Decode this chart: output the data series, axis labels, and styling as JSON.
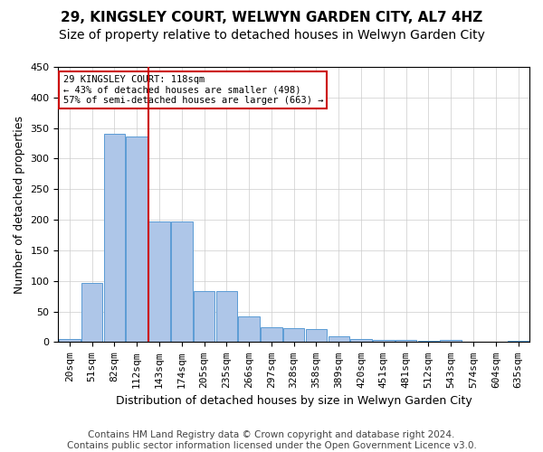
{
  "title1": "29, KINGSLEY COURT, WELWYN GARDEN CITY, AL7 4HZ",
  "title2": "Size of property relative to detached houses in Welwyn Garden City",
  "xlabel": "Distribution of detached houses by size in Welwyn Garden City",
  "ylabel": "Number of detached properties",
  "footnote": "Contains HM Land Registry data © Crown copyright and database right 2024.\nContains public sector information licensed under the Open Government Licence v3.0.",
  "annotation_line1": "29 KINGSLEY COURT: 118sqm",
  "annotation_line2": "← 43% of detached houses are smaller (498)",
  "annotation_line3": "57% of semi-detached houses are larger (663) →",
  "bar_labels": [
    "20sqm",
    "51sqm",
    "82sqm",
    "112sqm",
    "143sqm",
    "174sqm",
    "205sqm",
    "235sqm",
    "266sqm",
    "297sqm",
    "328sqm",
    "358sqm",
    "389sqm",
    "420sqm",
    "451sqm",
    "481sqm",
    "512sqm",
    "543sqm",
    "574sqm",
    "604sqm",
    "635sqm"
  ],
  "bar_values": [
    5,
    97,
    340,
    336,
    197,
    197,
    83,
    83,
    42,
    25,
    23,
    21,
    10,
    5,
    4,
    4,
    2,
    4,
    0,
    1,
    2
  ],
  "bar_color": "#aec6e8",
  "bar_edge_color": "#5b9bd5",
  "vline_color": "#cc0000",
  "vline_position": 3.5,
  "annotation_box_color": "#cc0000",
  "ylim": [
    0,
    450
  ],
  "yticks": [
    0,
    50,
    100,
    150,
    200,
    250,
    300,
    350,
    400,
    450
  ],
  "grid_color": "#cccccc",
  "background_color": "#ffffff",
  "title_fontsize": 11,
  "subtitle_fontsize": 10,
  "axis_label_fontsize": 9,
  "tick_fontsize": 8,
  "footnote_fontsize": 7.5
}
